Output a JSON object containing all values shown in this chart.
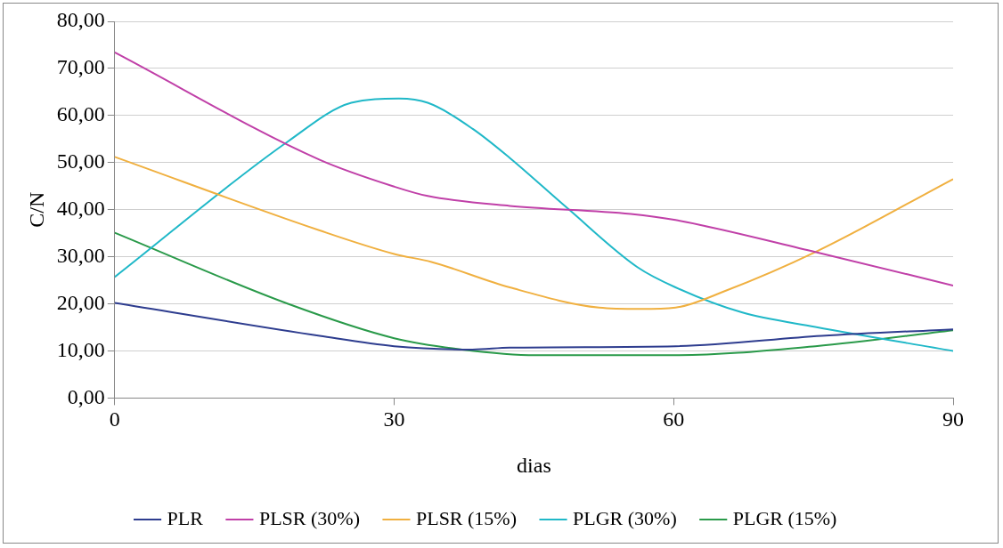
{
  "chart_data": {
    "type": "line",
    "xlabel": "dias",
    "ylabel": "C/N",
    "xlim": [
      0,
      90
    ],
    "xticks": [
      0,
      30,
      60,
      90
    ],
    "ylim": [
      0,
      80
    ],
    "yticks": [
      {
        "value": 0,
        "label": "0,00"
      },
      {
        "value": 10,
        "label": "10,00"
      },
      {
        "value": 20,
        "label": "20,00"
      },
      {
        "value": 30,
        "label": "30,00"
      },
      {
        "value": 40,
        "label": "40,00"
      },
      {
        "value": 50,
        "label": "50,00"
      },
      {
        "value": 60,
        "label": "60,00"
      },
      {
        "value": 70,
        "label": "70,00"
      },
      {
        "value": 80,
        "label": "80,00"
      }
    ],
    "grid": "y",
    "legend": "bottom",
    "marker": "none",
    "line_style": "solid",
    "series": [
      {
        "name": "PLR",
        "color": "#2e3d8f",
        "x": [
          0,
          22,
          30,
          38.4,
          42.4,
          60.2,
          75.9,
          90
        ],
        "values": [
          20.2,
          13.2,
          11.0,
          10.3,
          10.7,
          11.0,
          13.2,
          14.6
        ]
      },
      {
        "name": "PLSR (30%)",
        "color": "#c040a8",
        "x": [
          0,
          22,
          30,
          33.6,
          42.4,
          55.4,
          60.2,
          75.2,
          90
        ],
        "values": [
          73.4,
          50.6,
          44.9,
          42.9,
          40.8,
          39.1,
          37.8,
          31.0,
          23.9
        ]
      },
      {
        "name": "PLSR (15%)",
        "color": "#f0b040",
        "x": [
          0,
          22,
          30,
          34,
          42.4,
          52,
          56.4,
          60.2,
          65.6,
          75.2,
          90
        ],
        "values": [
          51.2,
          35.6,
          30.6,
          28.9,
          23.5,
          19.2,
          18.9,
          19.2,
          22.8,
          31.0,
          46.5
        ]
      },
      {
        "name": "PLGR (30%)",
        "color": "#20b8c8",
        "x": [
          0,
          18.6,
          25.4,
          30.5,
          33.6,
          38.4,
          42.4,
          48.6,
          56.1,
          60.2,
          67.3,
          75.2,
          90
        ],
        "values": [
          25.7,
          54.5,
          62.7,
          63.6,
          62.7,
          57.2,
          51.0,
          40.3,
          27.8,
          23.5,
          18.2,
          15.1,
          10.0
        ]
      },
      {
        "name": "PLGR (15%)",
        "color": "#2a9a4a",
        "x": [
          0,
          18.6,
          30,
          37.3,
          45.2,
          60.2,
          75.2,
          90
        ],
        "values": [
          35.1,
          20.0,
          12.7,
          10.3,
          9.1,
          9.1,
          11.0,
          14.4
        ]
      }
    ]
  }
}
